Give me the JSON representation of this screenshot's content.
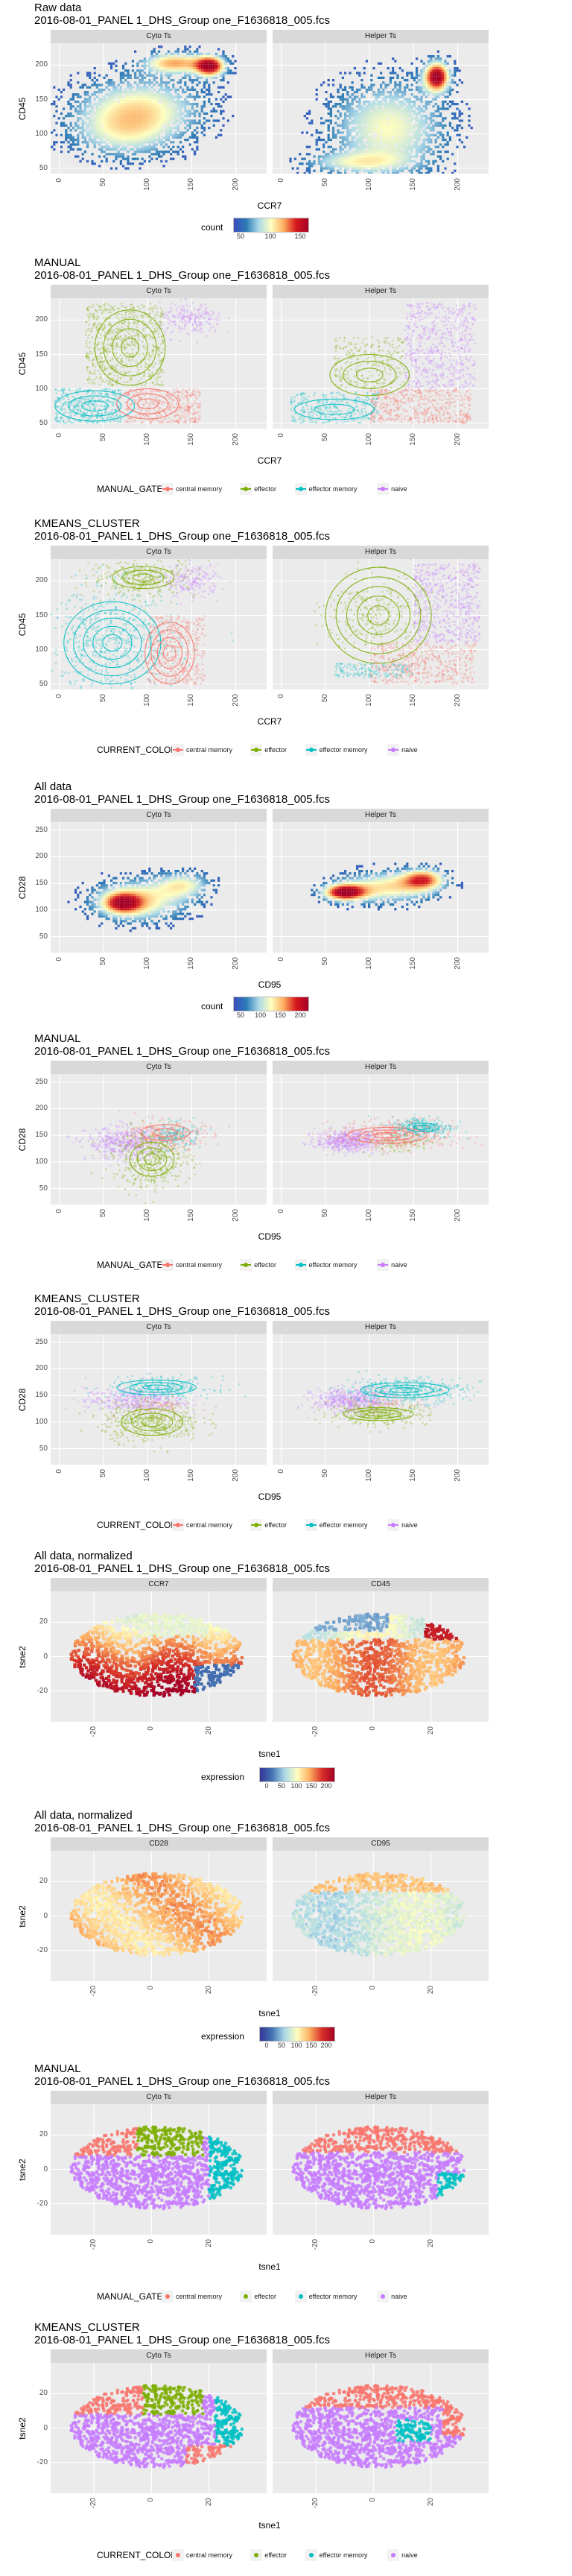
{
  "file_name": "2016-08-01_PANEL 1_DHS_Group one_F1636818_005.fcs",
  "facet_labels": {
    "cyto": "Cyto Ts",
    "helper": "Helper Ts"
  },
  "colors": {
    "central memory": "#f8766d",
    "effector": "#7cae00",
    "effector memory": "#00bfc4",
    "naive": "#c77cff"
  },
  "classes": [
    "central memory",
    "effector",
    "effector memory",
    "naive"
  ],
  "legends": {
    "count1": {
      "title": "count",
      "labels": [
        "50",
        "100",
        "150"
      ]
    },
    "count2": {
      "title": "count",
      "labels": [
        "50",
        "100",
        "150",
        "200"
      ]
    },
    "expr": {
      "title": "expression",
      "labels": [
        "0",
        "50",
        "100",
        "150",
        "200"
      ]
    },
    "manual": {
      "title": "MANUAL_GATE"
    },
    "kmeans": {
      "title": "CURRENT_COLOR"
    }
  },
  "chart_data": [
    {
      "id": "raw_ccr7",
      "title": "Raw data",
      "type": "heatmap",
      "xlabel": "CCR7",
      "ylabel": "CD45",
      "facets": [
        "Cyto Ts",
        "Helper Ts"
      ],
      "xlim": [
        -10,
        235
      ],
      "ylim": [
        42,
        232
      ],
      "x_ticks": [
        "0",
        "50",
        "100",
        "150",
        "200"
      ],
      "y_ticks": [
        "50",
        "100",
        "150",
        "200"
      ],
      "fill": "count",
      "fill_range": [
        0,
        190
      ]
    },
    {
      "id": "manual_ccr7",
      "title": "MANUAL",
      "type": "scatter",
      "xlabel": "CCR7",
      "ylabel": "CD45",
      "facets": [
        "Cyto Ts",
        "Helper Ts"
      ],
      "xlim": [
        -10,
        235
      ],
      "ylim": [
        42,
        232
      ],
      "x_ticks": [
        "0",
        "50",
        "100",
        "150",
        "200"
      ],
      "y_ticks": [
        "50",
        "100",
        "150",
        "200"
      ],
      "color_by": "MANUAL_GATE"
    },
    {
      "id": "kmeans_ccr7",
      "title": "KMEANS_CLUSTER",
      "type": "scatter",
      "xlabel": "CCR7",
      "ylabel": "CD45",
      "facets": [
        "Cyto Ts",
        "Helper Ts"
      ],
      "xlim": [
        -10,
        235
      ],
      "ylim": [
        42,
        232
      ],
      "x_ticks": [
        "0",
        "50",
        "100",
        "150",
        "200"
      ],
      "y_ticks": [
        "50",
        "100",
        "150",
        "200"
      ],
      "color_by": "CURRENT_COLOR"
    },
    {
      "id": "raw_cd95",
      "title": "All data",
      "type": "heatmap",
      "xlabel": "CD95",
      "ylabel": "CD28",
      "facets": [
        "Cyto Ts",
        "Helper Ts"
      ],
      "xlim": [
        -10,
        235
      ],
      "ylim": [
        20,
        265
      ],
      "x_ticks": [
        "0",
        "50",
        "100",
        "150",
        "200"
      ],
      "y_ticks": [
        "50",
        "100",
        "150",
        "200",
        "250"
      ],
      "fill": "count",
      "fill_range": [
        0,
        230
      ]
    },
    {
      "id": "manual_cd95",
      "title": "MANUAL",
      "type": "scatter",
      "xlabel": "CD95",
      "ylabel": "CD28",
      "facets": [
        "Cyto Ts",
        "Helper Ts"
      ],
      "xlim": [
        -10,
        235
      ],
      "ylim": [
        20,
        265
      ],
      "x_ticks": [
        "0",
        "50",
        "100",
        "150",
        "200"
      ],
      "y_ticks": [
        "50",
        "100",
        "150",
        "200",
        "250"
      ],
      "color_by": "MANUAL_GATE"
    },
    {
      "id": "kmeans_cd95",
      "title": "KMEANS_CLUSTER",
      "type": "scatter",
      "xlabel": "CD95",
      "ylabel": "CD28",
      "facets": [
        "Cyto Ts",
        "Helper Ts"
      ],
      "xlim": [
        -10,
        235
      ],
      "ylim": [
        20,
        265
      ],
      "x_ticks": [
        "0",
        "50",
        "100",
        "150",
        "200"
      ],
      "y_ticks": [
        "50",
        "100",
        "150",
        "200",
        "250"
      ],
      "color_by": "CURRENT_COLOR"
    },
    {
      "id": "tsne_ccr7_cd45",
      "title": "All data, normalized",
      "type": "scatter",
      "xlabel": "tsne1",
      "ylabel": "tsne2",
      "facets": [
        "CCR7",
        "CD45"
      ],
      "xlim": [
        -35,
        40
      ],
      "ylim": [
        -38,
        38
      ],
      "x_ticks": [
        "-20",
        "0",
        "20"
      ],
      "y_ticks": [
        "-20",
        "0",
        "20"
      ],
      "fill": "expression",
      "fill_range": [
        0,
        230
      ]
    },
    {
      "id": "tsne_cd28_cd95",
      "title": "All data, normalized",
      "type": "scatter",
      "xlabel": "tsne1",
      "ylabel": "tsne2",
      "facets": [
        "CD28",
        "CD95"
      ],
      "xlim": [
        -35,
        40
      ],
      "ylim": [
        -38,
        38
      ],
      "x_ticks": [
        "-20",
        "0",
        "20"
      ],
      "y_ticks": [
        "-20",
        "0",
        "20"
      ],
      "fill": "expression",
      "fill_range": [
        0,
        230
      ]
    },
    {
      "id": "tsne_manual",
      "title": "MANUAL",
      "type": "scatter",
      "xlabel": "tsne1",
      "ylabel": "tsne2",
      "facets": [
        "Cyto Ts",
        "Helper Ts"
      ],
      "xlim": [
        -35,
        40
      ],
      "ylim": [
        -38,
        38
      ],
      "x_ticks": [
        "-20",
        "0",
        "20"
      ],
      "y_ticks": [
        "-20",
        "0",
        "20"
      ],
      "color_by": "MANUAL_GATE"
    },
    {
      "id": "tsne_kmeans",
      "title": "KMEANS_CLUSTER",
      "type": "scatter",
      "xlabel": "tsne1",
      "ylabel": "tsne2",
      "facets": [
        "Cyto Ts",
        "Helper Ts"
      ],
      "xlim": [
        -35,
        40
      ],
      "ylim": [
        -38,
        38
      ],
      "x_ticks": [
        "-20",
        "0",
        "20"
      ],
      "y_ticks": [
        "-20",
        "0",
        "20"
      ],
      "color_by": "CURRENT_COLOR"
    }
  ]
}
